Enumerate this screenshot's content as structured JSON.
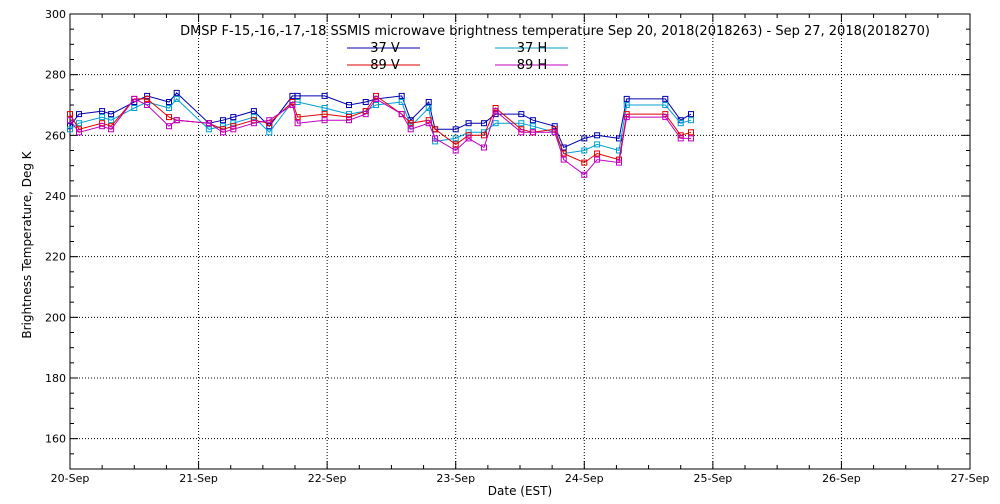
{
  "chart_data": {
    "type": "line",
    "title": "DMSP F-15,-16,-17,-18 SSMIS microwave brightness temperature Sep 20, 2018(2018263) - Sep 27, 2018(2018270)",
    "xlabel": "Date (EST)",
    "ylabel": "Brightness Temperature, Deg K",
    "xlim": [
      0,
      7
    ],
    "ylim": [
      150,
      300
    ],
    "yticks": [
      160,
      180,
      200,
      220,
      240,
      260,
      280,
      300
    ],
    "xticks": [
      "20-Sep",
      "21-Sep",
      "22-Sep",
      "23-Sep",
      "24-Sep",
      "25-Sep",
      "26-Sep",
      "27-Sep"
    ],
    "grid": true,
    "legend_position": "top-center",
    "x": [
      0.0,
      0.07,
      0.25,
      0.32,
      0.5,
      0.6,
      0.77,
      0.83,
      1.08,
      1.19,
      1.27,
      1.43,
      1.55,
      1.73,
      1.77,
      1.98,
      2.17,
      2.3,
      2.38,
      2.58,
      2.65,
      2.79,
      2.84,
      3.0,
      3.1,
      3.22,
      3.31,
      3.51,
      3.6,
      3.77,
      3.84,
      4.0,
      4.1,
      4.27,
      4.33,
      4.63,
      4.75,
      4.83
    ],
    "series": [
      {
        "name": "37 V",
        "color": "#0000b0",
        "values": [
          263,
          267,
          268,
          267,
          271,
          273,
          271,
          274,
          264,
          265,
          266,
          268,
          263,
          273,
          273,
          273,
          270,
          271,
          272,
          273,
          265,
          271,
          262,
          262,
          264,
          264,
          267,
          267,
          265,
          263,
          256,
          259,
          260,
          259,
          272,
          272,
          265,
          267
        ]
      },
      {
        "name": "37 H",
        "color": "#00a0d0",
        "values": [
          262,
          264,
          266,
          265,
          269,
          271,
          269,
          272,
          262,
          263,
          264,
          266,
          261,
          271,
          271,
          269,
          267,
          268,
          270,
          271,
          263,
          269,
          258,
          259,
          261,
          261,
          264,
          264,
          263,
          261,
          254,
          255,
          257,
          255,
          270,
          270,
          264,
          265
        ]
      },
      {
        "name": "89 V",
        "color": "#e00000",
        "values": [
          267,
          262,
          264,
          263,
          272,
          272,
          266,
          265,
          264,
          262,
          263,
          265,
          264,
          271,
          266,
          267,
          266,
          268,
          273,
          267,
          264,
          265,
          262,
          257,
          260,
          260,
          269,
          262,
          261,
          262,
          254,
          251,
          254,
          252,
          267,
          267,
          260,
          261
        ]
      },
      {
        "name": "89 H",
        "color": "#c000c0",
        "values": [
          265,
          261,
          263,
          262,
          272,
          270,
          263,
          265,
          264,
          261,
          262,
          264,
          265,
          270,
          264,
          265,
          265,
          267,
          272,
          267,
          262,
          264,
          259,
          255,
          259,
          256,
          268,
          261,
          261,
          261,
          252,
          247,
          252,
          251,
          266,
          266,
          259,
          259
        ]
      }
    ]
  }
}
